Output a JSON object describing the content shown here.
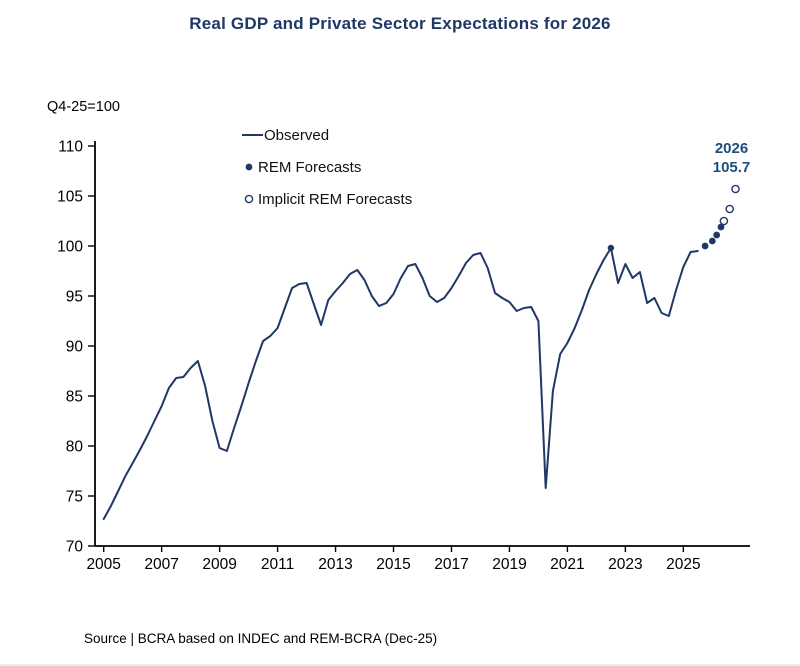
{
  "title": "Real GDP and Private Sector Expectations for 2026",
  "axis_note": "Q4-25=100",
  "source": "Source | BCRA based on INDEC and REM-BCRA (Dec-25)",
  "colors": {
    "line": "#1F3864",
    "dots_filled": "#1F3864",
    "dots_open_stroke": "#1F3864",
    "annotation": "#1F4E79",
    "axis": "#000000",
    "title": "#1F3864"
  },
  "chart_data": {
    "type": "line",
    "title": "Real GDP and Private Sector Expectations for 2026",
    "index_note": "Q4-25=100",
    "ylim": [
      70,
      110
    ],
    "yticks": [
      70,
      75,
      80,
      85,
      90,
      95,
      100,
      105,
      110
    ],
    "xlim": [
      2004.7,
      2027.3
    ],
    "xticks": [
      2005,
      2007,
      2009,
      2011,
      2013,
      2015,
      2017,
      2019,
      2021,
      2023,
      2025
    ],
    "legend_position": "top-left-inside",
    "grid": false,
    "annotation": {
      "year": "2026",
      "value": "105.7",
      "at": [
        2026.8,
        105.7
      ]
    },
    "peak_marker": [
      2022.5,
      99.8
    ],
    "series": [
      {
        "name": "Observed",
        "style": "line",
        "points": [
          [
            2005.0,
            72.7
          ],
          [
            2005.25,
            74.0
          ],
          [
            2005.5,
            75.5
          ],
          [
            2005.75,
            77.0
          ],
          [
            2006.0,
            78.3
          ],
          [
            2006.25,
            79.6
          ],
          [
            2006.5,
            81.0
          ],
          [
            2006.75,
            82.5
          ],
          [
            2007.0,
            84.0
          ],
          [
            2007.25,
            85.8
          ],
          [
            2007.5,
            86.8
          ],
          [
            2007.75,
            86.9
          ],
          [
            2008.0,
            87.8
          ],
          [
            2008.25,
            88.5
          ],
          [
            2008.5,
            86.0
          ],
          [
            2008.75,
            82.5
          ],
          [
            2009.0,
            79.8
          ],
          [
            2009.25,
            79.5
          ],
          [
            2009.5,
            81.8
          ],
          [
            2009.75,
            84.0
          ],
          [
            2010.0,
            86.3
          ],
          [
            2010.25,
            88.5
          ],
          [
            2010.5,
            90.5
          ],
          [
            2010.75,
            91.0
          ],
          [
            2011.0,
            91.8
          ],
          [
            2011.25,
            93.8
          ],
          [
            2011.5,
            95.8
          ],
          [
            2011.75,
            96.2
          ],
          [
            2012.0,
            96.3
          ],
          [
            2012.25,
            94.2
          ],
          [
            2012.5,
            92.1
          ],
          [
            2012.75,
            94.6
          ],
          [
            2013.0,
            95.5
          ],
          [
            2013.25,
            96.3
          ],
          [
            2013.5,
            97.2
          ],
          [
            2013.75,
            97.6
          ],
          [
            2014.0,
            96.6
          ],
          [
            2014.25,
            95.0
          ],
          [
            2014.5,
            94.0
          ],
          [
            2014.75,
            94.3
          ],
          [
            2015.0,
            95.2
          ],
          [
            2015.25,
            96.8
          ],
          [
            2015.5,
            98.0
          ],
          [
            2015.75,
            98.2
          ],
          [
            2016.0,
            96.8
          ],
          [
            2016.25,
            95.0
          ],
          [
            2016.5,
            94.4
          ],
          [
            2016.75,
            94.8
          ],
          [
            2017.0,
            95.8
          ],
          [
            2017.25,
            97.0
          ],
          [
            2017.5,
            98.3
          ],
          [
            2017.75,
            99.1
          ],
          [
            2018.0,
            99.3
          ],
          [
            2018.25,
            97.8
          ],
          [
            2018.5,
            95.3
          ],
          [
            2018.75,
            94.8
          ],
          [
            2019.0,
            94.4
          ],
          [
            2019.25,
            93.5
          ],
          [
            2019.5,
            93.8
          ],
          [
            2019.75,
            93.9
          ],
          [
            2020.0,
            92.5
          ],
          [
            2020.25,
            75.8
          ],
          [
            2020.5,
            85.5
          ],
          [
            2020.75,
            89.2
          ],
          [
            2021.0,
            90.3
          ],
          [
            2021.25,
            91.8
          ],
          [
            2021.5,
            93.6
          ],
          [
            2021.75,
            95.6
          ],
          [
            2022.0,
            97.2
          ],
          [
            2022.25,
            98.6
          ],
          [
            2022.5,
            99.8
          ],
          [
            2022.75,
            96.3
          ],
          [
            2023.0,
            98.2
          ],
          [
            2023.25,
            96.8
          ],
          [
            2023.5,
            97.4
          ],
          [
            2023.75,
            94.3
          ],
          [
            2024.0,
            94.8
          ],
          [
            2024.25,
            93.3
          ],
          [
            2024.5,
            93.0
          ],
          [
            2024.75,
            95.6
          ],
          [
            2025.0,
            97.9
          ],
          [
            2025.25,
            99.4
          ],
          [
            2025.5,
            99.5
          ]
        ]
      },
      {
        "name": "REM Forecasts",
        "style": "filled-dots",
        "points": [
          [
            2025.75,
            100.0
          ],
          [
            2026.0,
            100.5
          ],
          [
            2026.15,
            101.1
          ],
          [
            2026.3,
            101.9
          ]
        ]
      },
      {
        "name": "Implicit REM Forecasts",
        "style": "open-dots",
        "points": [
          [
            2026.4,
            102.5
          ],
          [
            2026.6,
            103.7
          ],
          [
            2026.8,
            105.7
          ]
        ]
      }
    ]
  }
}
